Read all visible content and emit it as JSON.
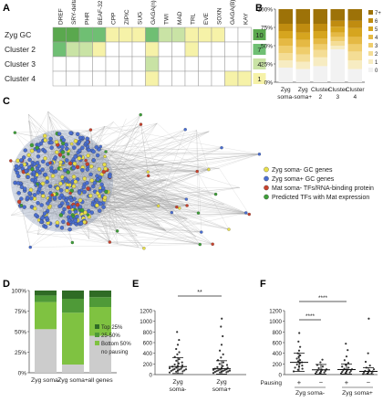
{
  "panel_labels": {
    "A": "A",
    "B": "B",
    "C": "C",
    "D": "D",
    "E": "E",
    "F": "F"
  },
  "colors": {
    "heat_low": "#f6f2a8",
    "heat_mid": "#c9e3a5",
    "heat_high": "#6fbf73",
    "heat_max": "#5aa84e",
    "gold": [
      "#f2f2f2",
      "#f7ecc2",
      "#f4dd95",
      "#efcd6c",
      "#e5b944",
      "#d6a51f",
      "#c08c10",
      "#9d7208"
    ],
    "greens": [
      "#cccccc",
      "#7fc241",
      "#4f9a38",
      "#2f6b25"
    ],
    "network_edge": "#9a9a9a",
    "node_yellow": "#e8df4a",
    "node_blue": "#4a6ed0",
    "node_red": "#c7432e",
    "node_green": "#3f9e3a"
  },
  "chart_data": [
    {
      "panel": "A",
      "type": "heatmap",
      "columns": [
        "DREF",
        "SRY-delta",
        "PHR",
        "BEAF-32",
        "CPP",
        "ZIPIC",
        "SUG",
        "GAGA(n)",
        "TWI",
        "MAD",
        "TRL",
        "EVE",
        "SOXN",
        "GAGA(B)",
        "KAY"
      ],
      "rows": [
        "Zyg GC",
        "Cluster 2",
        "Cluster 3",
        "Cluster 4"
      ],
      "levels": [
        [
          4,
          4,
          3,
          3,
          1,
          1,
          1,
          3,
          2,
          2,
          1,
          1,
          1,
          0,
          0
        ],
        [
          3,
          2,
          2,
          1,
          0,
          0,
          0,
          1,
          0,
          0,
          1,
          0,
          0,
          0,
          0
        ],
        [
          0,
          0,
          0,
          0,
          0,
          0,
          0,
          2,
          0,
          0,
          0,
          0,
          0,
          0,
          0
        ],
        [
          0,
          0,
          0,
          0,
          0,
          0,
          0,
          1,
          0,
          0,
          0,
          0,
          0,
          1,
          1
        ]
      ],
      "row_totals": [
        "10",
        "7",
        "4",
        "1"
      ]
    },
    {
      "panel": "B",
      "type": "bar",
      "stacked": true,
      "categories": [
        "Zyg soma-",
        "Zyg soma+",
        "Cluster 2",
        "Cluster 3",
        "Cluster 4"
      ],
      "series": [
        {
          "name": "0",
          "values": [
            20,
            18,
            22,
            45,
            18
          ]
        },
        {
          "name": "1",
          "values": [
            10,
            10,
            12,
            5,
            12
          ]
        },
        {
          "name": "2",
          "values": [
            10,
            10,
            10,
            6,
            12
          ]
        },
        {
          "name": "3",
          "values": [
            10,
            10,
            8,
            6,
            10
          ]
        },
        {
          "name": "4",
          "values": [
            10,
            10,
            8,
            6,
            10
          ]
        },
        {
          "name": "5",
          "values": [
            10,
            10,
            10,
            8,
            12
          ]
        },
        {
          "name": "6",
          "values": [
            10,
            12,
            10,
            8,
            10
          ]
        },
        {
          "name": "7+",
          "values": [
            20,
            20,
            20,
            16,
            16
          ]
        }
      ],
      "yticks": [
        "0%",
        "25%",
        "50%",
        "75%",
        "100%"
      ],
      "ylim": [
        0,
        100
      ]
    },
    {
      "panel": "C",
      "type": "scatter",
      "legend": [
        {
          "label": "Zyg soma- GC genes",
          "color": "#e8df4a"
        },
        {
          "label": "Zyg soma+ GC genes",
          "color": "#4a6ed0"
        },
        {
          "label": "Mat soma- TFs/RNA-binding protein",
          "color": "#c7432e"
        },
        {
          "label": "Predicted TFs with Mat expression",
          "color": "#3f9e3a"
        }
      ]
    },
    {
      "panel": "D",
      "type": "bar",
      "stacked": true,
      "categories": [
        "Zyg soma-",
        "Zyg soma+",
        "all genes"
      ],
      "series": [
        {
          "name": "no pausing",
          "values": [
            53,
            10,
            45
          ]
        },
        {
          "name": "Bottom 50%",
          "values": [
            33,
            63,
            35
          ]
        },
        {
          "name": "25-50%",
          "values": [
            8,
            17,
            12
          ]
        },
        {
          "name": "Top 25%",
          "values": [
            6,
            10,
            8
          ]
        }
      ],
      "legend": [
        "Top 25%",
        "25-50%",
        "Bottom 50%",
        "no pausing"
      ],
      "yticks": [
        "0%",
        "25%",
        "50%",
        "75%",
        "100%"
      ],
      "ylim": [
        0,
        100
      ]
    },
    {
      "panel": "E",
      "type": "scatter",
      "categories": [
        "Zyg soma-",
        "Zyg soma+"
      ],
      "yticks": [
        "0",
        "200",
        "400",
        "600",
        "800",
        "1000",
        "1200"
      ],
      "ylim": [
        0,
        1200
      ],
      "means": [
        150,
        110
      ],
      "sd_upper": [
        320,
        260
      ],
      "sd_lower": [
        20,
        10
      ],
      "significance": "**",
      "points": [
        [
          40,
          55,
          60,
          70,
          75,
          80,
          90,
          95,
          100,
          105,
          110,
          120,
          130,
          140,
          150,
          160,
          175,
          190,
          210,
          230,
          260,
          290,
          330,
          380,
          420,
          480,
          560,
          650,
          800
        ],
        [
          30,
          40,
          45,
          50,
          55,
          60,
          65,
          70,
          75,
          80,
          85,
          90,
          95,
          100,
          110,
          120,
          130,
          140,
          160,
          180,
          200,
          230,
          270,
          320,
          380,
          450,
          560,
          720,
          900,
          1050
        ]
      ]
    },
    {
      "panel": "F",
      "type": "scatter",
      "pausing_label": "Pausing",
      "categories": [
        "+",
        "−",
        "+",
        "−"
      ],
      "groups": [
        "Zyg soma-",
        "Zyg soma+"
      ],
      "yticks": [
        "0",
        "200",
        "400",
        "600",
        "800",
        "1000",
        "1200"
      ],
      "ylim": [
        0,
        1200
      ],
      "means": [
        230,
        90,
        95,
        60
      ],
      "sd_upper": [
        400,
        190,
        200,
        130
      ],
      "sd_lower": [
        60,
        10,
        10,
        5
      ],
      "significance": [
        "****",
        "****"
      ],
      "points": [
        [
          60,
          90,
          110,
          130,
          150,
          170,
          190,
          210,
          230,
          250,
          270,
          300,
          330,
          360,
          400,
          450,
          520,
          620,
          780
        ],
        [
          20,
          30,
          40,
          50,
          60,
          70,
          80,
          90,
          100,
          120,
          150,
          180,
          230,
          280
        ],
        [
          20,
          30,
          40,
          50,
          60,
          70,
          80,
          90,
          100,
          110,
          130,
          150,
          180,
          220,
          270,
          340,
          460,
          580
        ],
        [
          10,
          20,
          30,
          40,
          50,
          60,
          70,
          80,
          100,
          130,
          170,
          240,
          400,
          1050
        ]
      ]
    }
  ]
}
